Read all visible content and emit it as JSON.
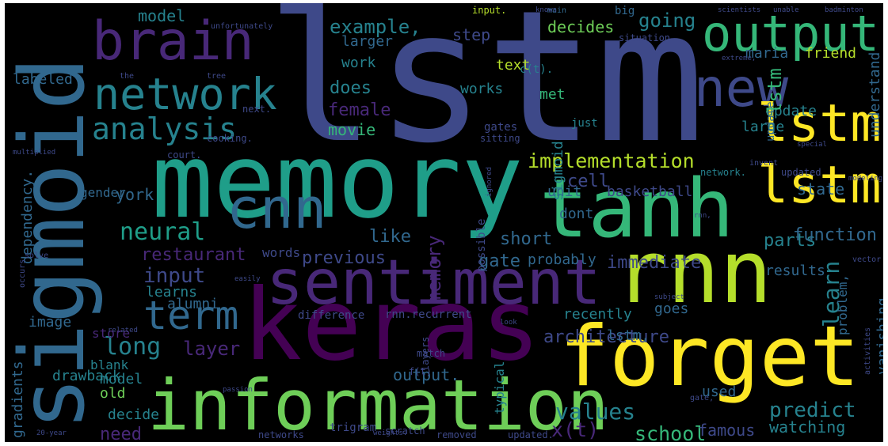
{
  "background": "#000000",
  "palette": {
    "dark_purple": "#440154",
    "purple": "#482878",
    "indigo": "#3e4989",
    "blue": "#31688e",
    "teal": "#26828e",
    "green_teal": "#1f9e89",
    "green": "#35b779",
    "lime": "#6ece58",
    "yellow_green": "#b5de2b",
    "yellow": "#fde725"
  },
  "words": [
    {
      "text": "lstm",
      "color": "#3e4989"
    },
    {
      "text": "memory",
      "color": "#1f9e89"
    },
    {
      "text": "keras",
      "color": "#440154"
    },
    {
      "text": "sigmoid",
      "color": "#31688e"
    },
    {
      "text": "forget",
      "color": "#fde725"
    },
    {
      "text": "rnn",
      "color": "#b5de2b"
    },
    {
      "text": "information",
      "color": "#6ece58"
    },
    {
      "text": "tanh",
      "color": "#35b779"
    },
    {
      "text": "sentiment",
      "color": "#482878"
    },
    {
      "text": "brain",
      "color": "#482878"
    },
    {
      "text": "output",
      "color": "#35b779"
    },
    {
      "text": "new",
      "color": "#3e4989"
    },
    {
      "text": "network",
      "color": "#26828e"
    },
    {
      "text": "lstm",
      "color": "#fde725"
    },
    {
      "text": "lstm",
      "color": "#fde725"
    },
    {
      "text": "cnn",
      "color": "#31688e"
    },
    {
      "text": "analysis",
      "color": "#26828e"
    },
    {
      "text": "term",
      "color": "#31688e"
    },
    {
      "text": "implementation",
      "color": "#b5de2b"
    },
    {
      "text": "neural",
      "color": "#1f9e89"
    },
    {
      "text": "restaurant",
      "color": "#482878"
    },
    {
      "text": "input",
      "color": "#3e4989"
    },
    {
      "text": "previous",
      "color": "#3e4989"
    },
    {
      "text": "long",
      "color": "#26828e"
    },
    {
      "text": "layer",
      "color": "#482878"
    },
    {
      "text": "learn",
      "color": "#26828e"
    },
    {
      "text": "architecture",
      "color": "#3e4989"
    },
    {
      "text": "values",
      "color": "#26828e"
    },
    {
      "text": "predict",
      "color": "#26828e"
    },
    {
      "text": "x(t)",
      "color": "#482878"
    },
    {
      "text": "need",
      "color": "#482878"
    },
    {
      "text": "school",
      "color": "#35b779"
    },
    {
      "text": "famous",
      "color": "#3e4989"
    },
    {
      "text": "watching",
      "color": "#26828e"
    },
    {
      "text": "model",
      "color": "#26828e"
    },
    {
      "text": "example,",
      "color": "#26828e"
    },
    {
      "text": "decides",
      "color": "#6ece58"
    },
    {
      "text": "step",
      "color": "#3e4989"
    },
    {
      "text": "going",
      "color": "#26828e"
    },
    {
      "text": "larger",
      "color": "#31688e"
    },
    {
      "text": "work",
      "color": "#26828e"
    },
    {
      "text": "text",
      "color": "#b5de2b"
    },
    {
      "text": "maria",
      "color": "#31688e"
    },
    {
      "text": "friend",
      "color": "#b5de2b"
    },
    {
      "text": "does",
      "color": "#26828e"
    },
    {
      "text": "female",
      "color": "#482878"
    },
    {
      "text": "works",
      "color": "#26828e"
    },
    {
      "text": "met",
      "color": "#35b779"
    },
    {
      "text": "movie",
      "color": "#35b779"
    },
    {
      "text": "update",
      "color": "#26828e"
    },
    {
      "text": "large",
      "color": "#26828e"
    },
    {
      "text": "cell",
      "color": "#3e4989"
    },
    {
      "text": "state",
      "color": "#31688e"
    },
    {
      "text": "york",
      "color": "#31688e"
    },
    {
      "text": "unit",
      "color": "#31688e"
    },
    {
      "text": "basketball",
      "color": "#3e4989"
    },
    {
      "text": "dont",
      "color": "#31688e"
    },
    {
      "text": "like",
      "color": "#31688e"
    },
    {
      "text": "short",
      "color": "#31688e"
    },
    {
      "text": "parts",
      "color": "#26828e"
    },
    {
      "text": "function",
      "color": "#31688e"
    },
    {
      "text": "gate",
      "color": "#31688e"
    },
    {
      "text": "probably",
      "color": "#31688e"
    },
    {
      "text": "immediate",
      "color": "#3e4989"
    },
    {
      "text": "results",
      "color": "#31688e"
    },
    {
      "text": "alumni",
      "color": "#31688e"
    },
    {
      "text": "learns",
      "color": "#26828e"
    },
    {
      "text": "recently",
      "color": "#26828e"
    },
    {
      "text": "goes",
      "color": "#31688e"
    },
    {
      "text": "image",
      "color": "#31688e"
    },
    {
      "text": "store",
      "color": "#482878"
    },
    {
      "text": "blank",
      "color": "#26828e"
    },
    {
      "text": "model",
      "color": "#26828e"
    },
    {
      "text": "drawback",
      "color": "#26828e"
    },
    {
      "text": "old",
      "color": "#6ece58"
    },
    {
      "text": "decide",
      "color": "#26828e"
    },
    {
      "text": "output.",
      "color": "#31688e"
    },
    {
      "text": "used",
      "color": "#31688e"
    },
    {
      "text": "lstm,",
      "color": "#31688e"
    },
    {
      "text": "labeled",
      "color": "#31688e"
    },
    {
      "text": "gender",
      "color": "#31688e"
    },
    {
      "text": "dependency.",
      "color": "#31688e"
    },
    {
      "text": "gradients",
      "color": "#31688e"
    },
    {
      "text": "vanishing",
      "color": "#31688e"
    },
    {
      "text": "understand",
      "color": "#31688e"
    },
    {
      "text": "problem,",
      "color": "#31688e"
    },
    {
      "text": "big",
      "color": "#31688e"
    },
    {
      "text": "main",
      "color": "#31688e"
    },
    {
      "text": "input.",
      "color": "#b5de2b"
    },
    {
      "text": "c(t).",
      "color": "#26828e"
    },
    {
      "text": "sigmoid",
      "color": "#26828e"
    },
    {
      "text": "update",
      "color": "#31688e"
    },
    {
      "text": "lstm",
      "color": "#35b779"
    },
    {
      "text": "memory",
      "color": "#482878"
    },
    {
      "text": "possible",
      "color": "#3e4989"
    },
    {
      "text": "typical",
      "color": "#26828e"
    },
    {
      "text": "words",
      "color": "#3e4989"
    },
    {
      "text": "gates",
      "color": "#3e4989"
    },
    {
      "text": "just",
      "color": "#26828e"
    },
    {
      "text": "network.",
      "color": "#26828e"
    },
    {
      "text": "rnn.recurrent",
      "color": "#3e4989"
    },
    {
      "text": "difference",
      "color": "#3e4989"
    },
    {
      "text": "match",
      "color": "#3e4989"
    },
    {
      "text": "f(t)",
      "color": "#3e4989"
    },
    {
      "text": "trigram",
      "color": "#3e4989"
    },
    {
      "text": "scratch",
      "color": "#3e4989"
    },
    {
      "text": "removed",
      "color": "#3e4989"
    },
    {
      "text": "updated.",
      "color": "#3e4989"
    },
    {
      "text": "networks",
      "color": "#3e4989"
    },
    {
      "text": "court.",
      "color": "#3e4989"
    },
    {
      "text": "cooking.",
      "color": "#3e4989"
    },
    {
      "text": "sitting",
      "color": "#3e4989"
    },
    {
      "text": "updated",
      "color": "#3e4989"
    },
    {
      "text": "next.",
      "color": "#3e4989"
    },
    {
      "text": "invent",
      "color": "#3e4989"
    },
    {
      "text": "layers",
      "color": "#3e4989"
    },
    {
      "text": "situation.",
      "color": "#3e4989"
    },
    {
      "text": "unfortunately",
      "color": "#3e4989"
    },
    {
      "text": "knows",
      "color": "#3e4989"
    },
    {
      "text": "scientists",
      "color": "#3e4989"
    },
    {
      "text": "unable",
      "color": "#3e4989"
    },
    {
      "text": "badminton",
      "color": "#3e4989"
    },
    {
      "text": "the",
      "color": "#3e4989"
    },
    {
      "text": "tree",
      "color": "#3e4989"
    },
    {
      "text": "extreme,",
      "color": "#3e4989"
    },
    {
      "text": "multiplied",
      "color": "#3e4989"
    },
    {
      "text": "special",
      "color": "#3e4989"
    },
    {
      "text": "modeling.",
      "color": "#3e4989"
    },
    {
      "text": "vector",
      "color": "#3e4989"
    },
    {
      "text": "solve",
      "color": "#3e4989"
    },
    {
      "text": "occurs",
      "color": "#3e4989"
    },
    {
      "text": "easily",
      "color": "#3e4989"
    },
    {
      "text": "activities",
      "color": "#3e4989"
    },
    {
      "text": "20-year",
      "color": "#3e4989"
    },
    {
      "text": "related",
      "color": "#3e4989"
    },
    {
      "text": "gate,",
      "color": "#3e4989"
    },
    {
      "text": "passion",
      "color": "#3e4989"
    },
    {
      "text": "weights.",
      "color": "#3e4989"
    },
    {
      "text": "ignored",
      "color": "#3e4989"
    },
    {
      "text": "rnn,",
      "color": "#3e4989"
    },
    {
      "text": "subject",
      "color": "#3e4989"
    },
    {
      "text": "look",
      "color": "#3e4989"
    }
  ]
}
